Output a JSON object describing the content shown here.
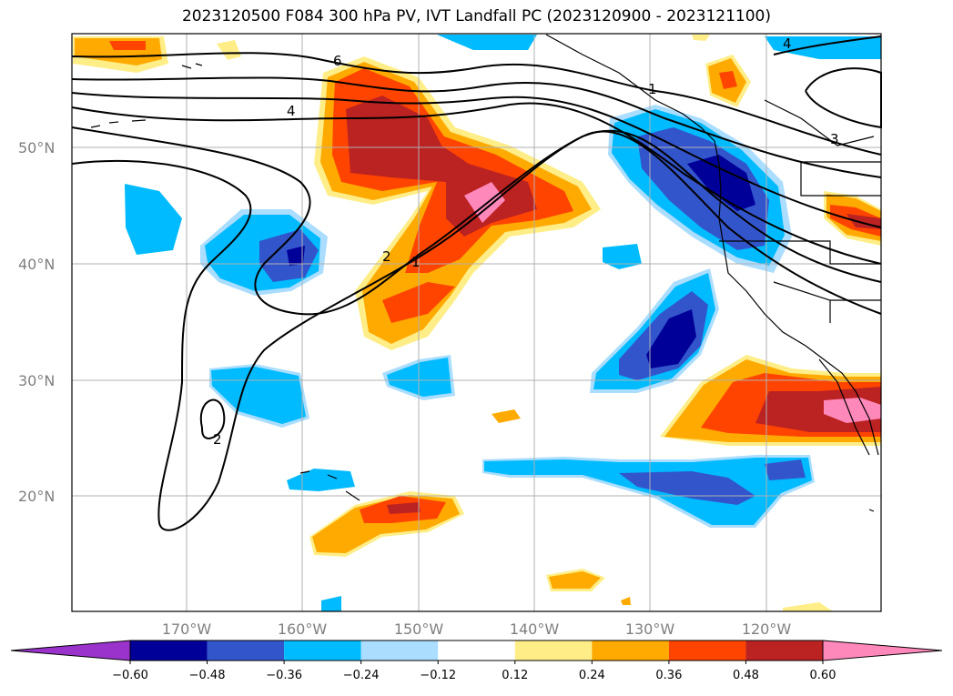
{
  "title": "2023120500 F084 300 hPa PV, IVT Landfall PC (2023120900 - 2023121100)",
  "lat_labels": [
    "50°N",
    "40°N",
    "30°N",
    "20°N"
  ],
  "lon_labels": [
    "170°W",
    "160°W",
    "150°W",
    "140°W",
    "130°W",
    "120°W"
  ],
  "colorbar": {
    "ticks": [
      "−0.60",
      "−0.48",
      "−0.36",
      "−0.24",
      "−0.12",
      "0.12",
      "0.24",
      "0.36",
      "0.48",
      "0.60"
    ],
    "colors": [
      "#9933cc",
      "#000099",
      "#3355cc",
      "#00bbff",
      "#aaddff",
      "#ffffff",
      "#ffee88",
      "#ffaa00",
      "#ff4400",
      "#bb2222",
      "#ff88bb"
    ]
  },
  "contour_labels": [
    "4",
    "2",
    "1",
    "4",
    "3",
    "2",
    "1",
    "6"
  ],
  "colors": {
    "grid": "#b0b0b0",
    "contour": "#000000",
    "coast": "#000000"
  }
}
